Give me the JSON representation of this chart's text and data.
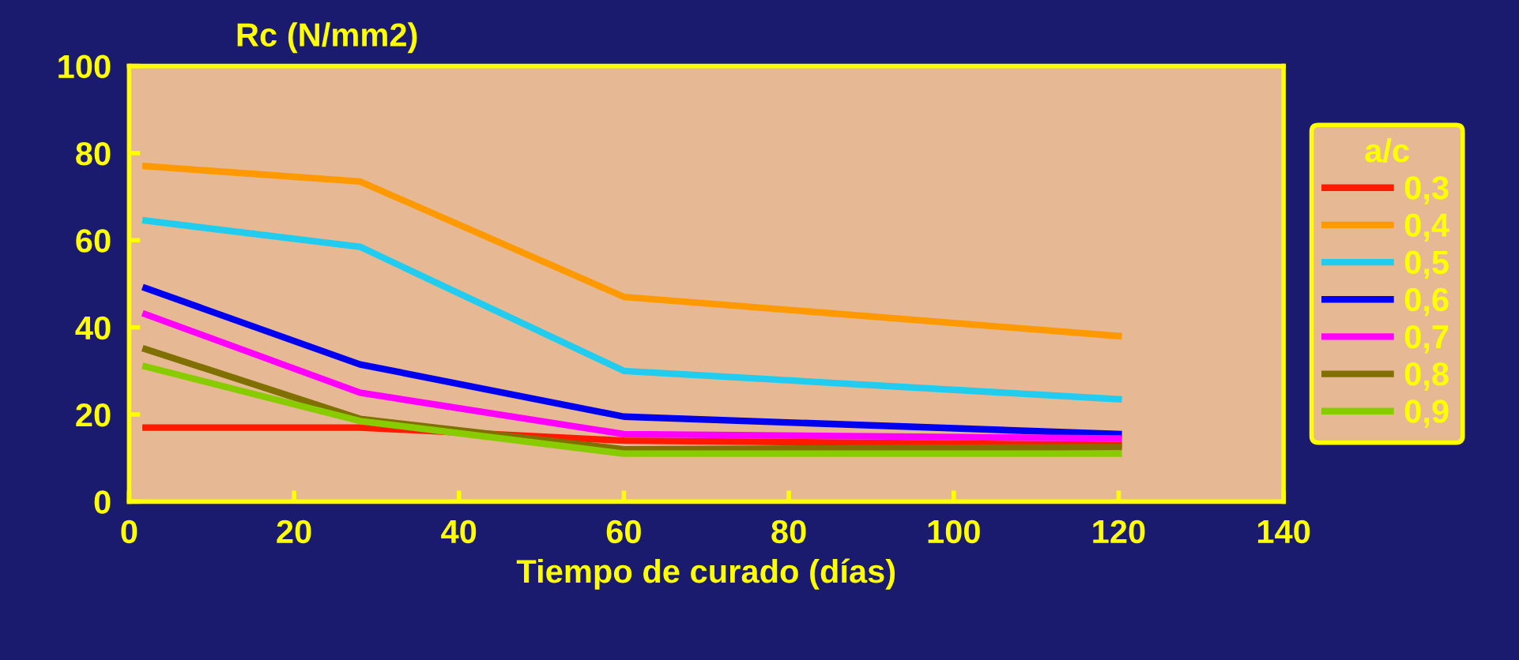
{
  "chart_data": {
    "type": "line",
    "ylabel": "Rc (N/mm2)",
    "xlabel": "Tiempo de curado (días)",
    "legend_title": "a/c",
    "legend": "right",
    "grid": false,
    "marker": "none",
    "line_style": "solid",
    "xlim": [
      0,
      140
    ],
    "xticks": [
      0,
      20,
      40,
      60,
      80,
      100,
      120,
      140
    ],
    "ylim": [
      0,
      100
    ],
    "yticks": [
      0,
      20,
      40,
      60,
      80,
      100
    ],
    "x": [
      2,
      28,
      60,
      120
    ],
    "series": [
      {
        "name": "0,3",
        "color": "#ff1a00",
        "values": [
          17,
          17,
          14,
          13
        ]
      },
      {
        "name": "0,4",
        "color": "#ff9900",
        "values": [
          77,
          73.5,
          47,
          38
        ]
      },
      {
        "name": "0,5",
        "color": "#22ccee",
        "values": [
          64.5,
          58.5,
          30,
          23.5
        ]
      },
      {
        "name": "0,6",
        "color": "#0000ee",
        "values": [
          49,
          31.5,
          19.5,
          15.5
        ]
      },
      {
        "name": "0,7",
        "color": "#ff00ff",
        "values": [
          43,
          25,
          15.5,
          14.5
        ]
      },
      {
        "name": "0,8",
        "color": "#807000",
        "values": [
          35,
          19,
          12,
          12.5
        ]
      },
      {
        "name": "0,9",
        "color": "#88cc00",
        "values": [
          31,
          18.5,
          11,
          11
        ]
      }
    ]
  }
}
